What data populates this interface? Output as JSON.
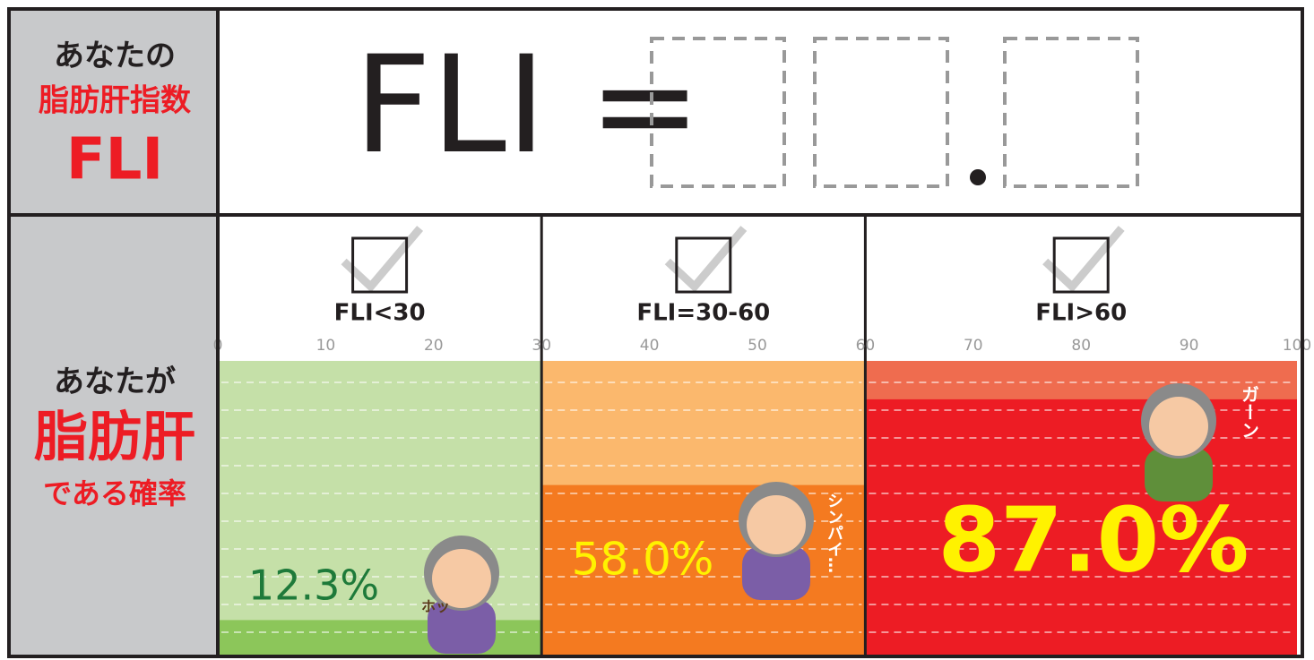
{
  "header": {
    "title_lines": [
      "あなたの",
      "脂肪肝指数",
      "FLI"
    ],
    "formula": "FLI ="
  },
  "result": {
    "title_lines": [
      "あなたが",
      "脂肪肝",
      "である確率"
    ]
  },
  "chart_data": {
    "type": "bar",
    "xlim": [
      0,
      100
    ],
    "xticks": [
      0,
      10,
      20,
      30,
      40,
      50,
      60,
      70,
      80,
      90,
      100
    ],
    "ylim": [
      0,
      100
    ],
    "categories": [
      "FLI<30",
      "FLI=30-60",
      "FLI>60"
    ],
    "ranges": [
      [
        0,
        30
      ],
      [
        30,
        60
      ],
      [
        60,
        100
      ]
    ],
    "values": [
      12.3,
      58.0,
      87.0
    ],
    "value_labels": [
      "12.3%",
      "58.0%",
      "87.0%"
    ],
    "colors": [
      "#8cc65a",
      "#f47a20",
      "#ed1c24"
    ],
    "background_colors": [
      "#c5e0a8",
      "#fbb86d",
      "#ef6c4f"
    ],
    "label_colors": [
      "#1e7a3a",
      "#fff200",
      "#fff200"
    ],
    "annotations": [
      "ホッ",
      "シンパイ…",
      "ガーン"
    ]
  }
}
